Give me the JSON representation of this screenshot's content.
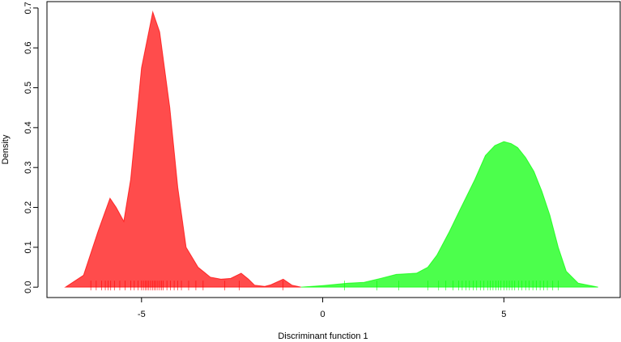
{
  "chart_data": {
    "type": "density",
    "xlabel": "Discriminant function 1",
    "ylabel": "Density",
    "xlim": [
      -7.61,
      8.21
    ],
    "ylim": [
      -0.026,
      0.716
    ],
    "xticks": [
      -5,
      0,
      5
    ],
    "yticks": [
      {
        "value": 0,
        "label": "0.0"
      },
      0.1,
      0.2,
      0.3,
      0.4,
      0.5,
      0.6,
      0.7
    ],
    "series": [
      {
        "color": "#ff0000",
        "x": [
          -7.1,
          -6.6,
          -6.2,
          -5.87,
          -5.7,
          -5.49,
          -5.3,
          -5.0,
          -4.69,
          -4.5,
          -4.22,
          -4.0,
          -3.77,
          -3.44,
          -3.1,
          -2.8,
          -2.54,
          -2.25,
          -2.05,
          -1.88,
          -1.6,
          -1.43,
          -1.09,
          -0.85,
          -0.6
        ],
        "values": [
          0,
          0.03,
          0.14,
          0.223,
          0.2,
          0.165,
          0.27,
          0.55,
          0.69,
          0.64,
          0.45,
          0.25,
          0.1,
          0.05,
          0.025,
          0.02,
          0.022,
          0.035,
          0.02,
          0.005,
          0.002,
          0.006,
          0.02,
          0.005,
          0
        ],
        "rug": [
          -6.4,
          -6.25,
          -6.1,
          -6.0,
          -5.92,
          -5.85,
          -5.75,
          -5.6,
          -5.45,
          -5.3,
          -5.2,
          -5.1,
          -5.0,
          -4.95,
          -4.9,
          -4.85,
          -4.8,
          -4.75,
          -4.7,
          -4.65,
          -4.6,
          -4.55,
          -4.5,
          -4.45,
          -4.4,
          -4.3,
          -4.2,
          -4.1,
          -4.0,
          -3.9,
          -3.7,
          -3.5,
          -3.3,
          -2.7,
          -2.3,
          -1.1
        ]
      },
      {
        "color": "#00ff00",
        "x": [
          -0.6,
          0.0,
          0.7,
          1.14,
          1.6,
          2.03,
          2.59,
          2.9,
          3.15,
          3.5,
          3.82,
          4.2,
          4.49,
          4.75,
          5.0,
          5.2,
          5.38,
          5.6,
          5.83,
          6.05,
          6.27,
          6.5,
          6.72,
          7.05,
          7.6
        ],
        "values": [
          0,
          0.004,
          0.01,
          0.012,
          0.022,
          0.032,
          0.035,
          0.05,
          0.08,
          0.14,
          0.2,
          0.27,
          0.33,
          0.355,
          0.365,
          0.36,
          0.35,
          0.325,
          0.29,
          0.24,
          0.18,
          0.1,
          0.04,
          0.01,
          0
        ],
        "rug": [
          0.6,
          1.5,
          2.1,
          2.9,
          3.2,
          3.4,
          3.6,
          3.75,
          3.85,
          3.95,
          4.05,
          4.15,
          4.25,
          4.35,
          4.45,
          4.55,
          4.62,
          4.7,
          4.78,
          4.85,
          4.92,
          5.0,
          5.08,
          5.15,
          5.22,
          5.3,
          5.4,
          5.5,
          5.6,
          5.7,
          5.8,
          5.9,
          6.0,
          6.1,
          6.2,
          6.35,
          6.5
        ]
      }
    ]
  }
}
